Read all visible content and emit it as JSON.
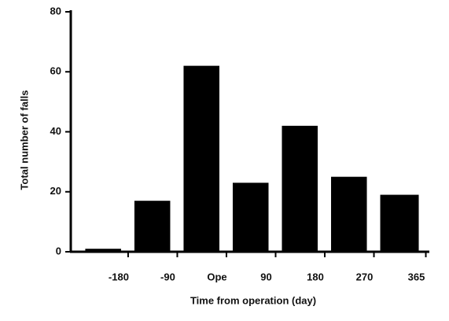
{
  "chart_data": {
    "type": "histogram",
    "xlabel": "Time from operation (day)",
    "ylabel": "Total number of falls",
    "bins": [
      -270,
      -180,
      -90,
      0,
      90,
      180,
      270,
      365
    ],
    "values": [
      1,
      17,
      62,
      23,
      42,
      25,
      19
    ],
    "color": "#000000",
    "xlim": [
      -285,
      370
    ],
    "xticks": [
      -180,
      -90,
      {
        "value": 0,
        "label": "Ope"
      },
      90,
      180,
      270,
      365
    ],
    "ylim": [
      0,
      80
    ],
    "yticks": [
      0,
      20,
      40,
      60,
      80
    ]
  }
}
